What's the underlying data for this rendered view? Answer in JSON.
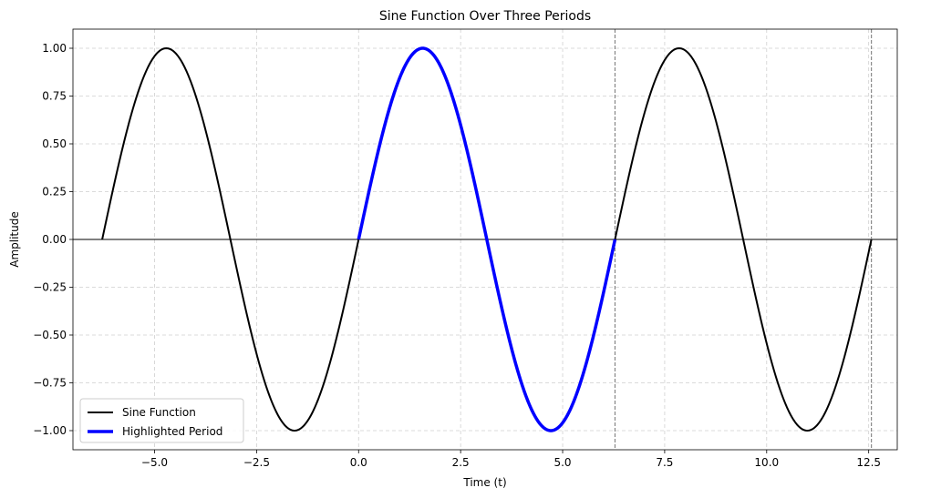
{
  "chart_data": {
    "type": "line",
    "title": "Sine Function Over Three Periods",
    "xlabel": "Time (t)",
    "ylabel": "Amplitude",
    "xlim": [
      -7.0,
      13.2
    ],
    "ylim": [
      -1.1,
      1.1
    ],
    "xticks": [
      -5.0,
      -2.5,
      0.0,
      2.5,
      5.0,
      7.5,
      10.0,
      12.5
    ],
    "xtick_labels": [
      "−5.0",
      "−2.5",
      "0.0",
      "2.5",
      "5.0",
      "7.5",
      "10.0",
      "12.5"
    ],
    "yticks": [
      -1.0,
      -0.75,
      -0.5,
      -0.25,
      0.0,
      0.25,
      0.5,
      0.75,
      1.0
    ],
    "ytick_labels": [
      "−1.00",
      "−0.75",
      "−0.50",
      "−0.25",
      "0.00",
      "0.25",
      "0.50",
      "0.75",
      "1.00"
    ],
    "grid": true,
    "legend_position": "lower-left",
    "zero_line": {
      "y": 0.0,
      "color": "#000000"
    },
    "vertical_markers": [
      {
        "x": 6.2832,
        "color": "#808080",
        "style": "dashed"
      },
      {
        "x": 12.5664,
        "color": "#808080",
        "style": "dashed"
      }
    ],
    "series": [
      {
        "name": "Sine Function",
        "function": "sin",
        "x_range": [
          -6.2832,
          12.5664
        ],
        "color": "#000000",
        "line_width": 2
      },
      {
        "name": "Highlighted Period",
        "function": "sin",
        "x_range": [
          0.0,
          6.2832
        ],
        "color": "#0000ff",
        "line_width": 3.5
      }
    ]
  }
}
